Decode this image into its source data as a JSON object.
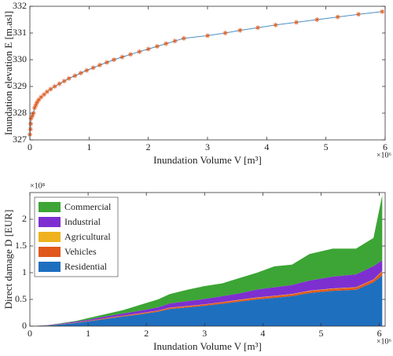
{
  "chart_data": [
    {
      "type": "line",
      "x_label": "Inundation Volume V [m³]",
      "y_label": "Inundation elevation E [m.asl]",
      "x_multiplier": "×10⁶",
      "x": [
        0,
        0.01,
        0.015,
        0.02,
        0.04,
        0.06,
        0.08,
        0.1,
        0.12,
        0.15,
        0.19,
        0.24,
        0.29,
        0.35,
        0.42,
        0.5,
        0.58,
        0.66,
        0.76,
        0.86,
        0.96,
        1.07,
        1.18,
        1.3,
        1.42,
        1.56,
        1.7,
        1.85,
        2.0,
        2.15,
        2.3,
        2.45,
        2.6,
        3.0,
        3.3,
        3.55,
        3.85,
        4.15,
        4.5,
        4.85,
        5.2,
        5.55,
        5.95
      ],
      "series": [
        {
          "color": "#4a8fc7",
          "marker_color": "#e0622a",
          "values": [
            327.2,
            327.4,
            327.6,
            327.8,
            327.9,
            328.0,
            328.2,
            328.3,
            328.4,
            328.5,
            328.6,
            328.7,
            328.8,
            328.9,
            329.0,
            329.1,
            329.2,
            329.3,
            329.4,
            329.5,
            329.6,
            329.7,
            329.8,
            329.9,
            330.0,
            330.1,
            330.2,
            330.3,
            330.4,
            330.5,
            330.6,
            330.7,
            330.8,
            330.9,
            331.0,
            331.1,
            331.2,
            331.3,
            331.4,
            331.5,
            331.6,
            331.7,
            331.8
          ]
        }
      ],
      "xlim": [
        0,
        6
      ],
      "xticks": [
        0,
        1,
        2,
        3,
        4,
        5,
        6
      ],
      "ylim": [
        327,
        332
      ],
      "yticks": [
        327,
        328,
        329,
        330,
        331,
        332
      ]
    },
    {
      "type": "stacked_area",
      "x_label": "Inundation Volume V [m³]",
      "y_label": "Direct damage D [EUR]",
      "x_multiplier": "×10⁶",
      "y_multiplier": "×10⁸",
      "legend": "upper left",
      "x": [
        0,
        0.3,
        0.5,
        0.8,
        1.0,
        1.2,
        1.4,
        1.6,
        1.9,
        2.2,
        2.4,
        2.7,
        3.0,
        3.3,
        3.6,
        3.9,
        4.2,
        4.5,
        4.8,
        5.2,
        5.6,
        5.9,
        6.05
      ],
      "series": [
        {
          "name": "Residential",
          "color": "#1f6fbf",
          "values": [
            0,
            0.01,
            0.03,
            0.06,
            0.09,
            0.12,
            0.15,
            0.18,
            0.22,
            0.27,
            0.32,
            0.35,
            0.38,
            0.42,
            0.46,
            0.5,
            0.53,
            0.56,
            0.62,
            0.66,
            0.68,
            0.82,
            0.95
          ]
        },
        {
          "name": "Vehicles",
          "color": "#e0581c",
          "values": [
            0,
            0.002,
            0.004,
            0.006,
            0.008,
            0.01,
            0.012,
            0.014,
            0.016,
            0.018,
            0.02,
            0.022,
            0.024,
            0.026,
            0.028,
            0.03,
            0.032,
            0.034,
            0.036,
            0.038,
            0.04,
            0.045,
            0.07
          ]
        },
        {
          "name": "Agricultural",
          "color": "#efb21e",
          "values": [
            0,
            0.001,
            0.001,
            0.002,
            0.002,
            0.003,
            0.003,
            0.003,
            0.004,
            0.004,
            0.005,
            0.005,
            0.005,
            0.005,
            0.006,
            0.006,
            0.006,
            0.007,
            0.007,
            0.008,
            0.008,
            0.009,
            0.012
          ]
        },
        {
          "name": "Industrial",
          "color": "#7e2fd0",
          "values": [
            0,
            0.005,
            0.01,
            0.02,
            0.02,
            0.03,
            0.035,
            0.04,
            0.05,
            0.06,
            0.08,
            0.09,
            0.1,
            0.11,
            0.12,
            0.15,
            0.16,
            0.17,
            0.19,
            0.22,
            0.24,
            0.25,
            0.2
          ]
        },
        {
          "name": "Commercial",
          "color": "#3ca535",
          "values": [
            0,
            0.002,
            0.005,
            0.012,
            0.03,
            0.037,
            0.05,
            0.063,
            0.11,
            0.148,
            0.175,
            0.213,
            0.241,
            0.239,
            0.286,
            0.314,
            0.392,
            0.379,
            0.497,
            0.524,
            0.482,
            0.526,
            1.218
          ]
        }
      ],
      "xlim": [
        0,
        6.1
      ],
      "xticks": [
        0,
        1,
        2,
        3,
        4,
        5,
        6
      ],
      "ylim": [
        0,
        2.5
      ],
      "yticks": [
        0,
        0.5,
        1,
        1.5,
        2
      ]
    }
  ]
}
